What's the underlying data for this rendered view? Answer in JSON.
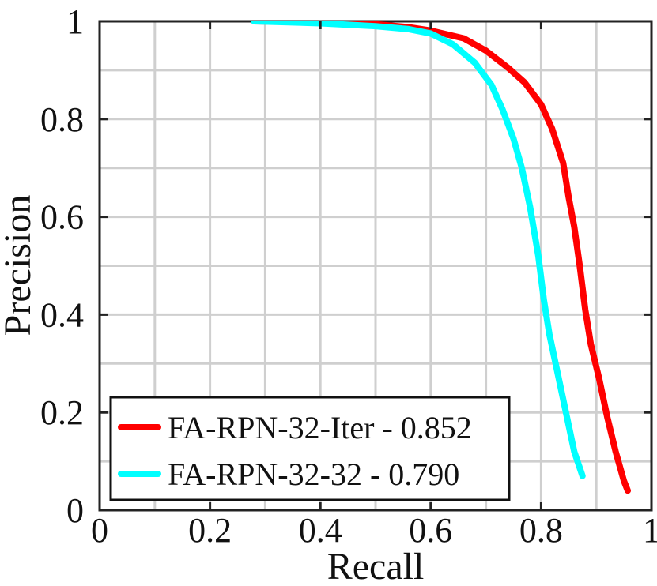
{
  "chart_data": {
    "type": "line",
    "title": "",
    "xlabel": "Recall",
    "ylabel": "Precision",
    "xlim": [
      0,
      1
    ],
    "ylim": [
      0,
      1
    ],
    "x_ticks": [
      0,
      0.2,
      0.4,
      0.6,
      0.8,
      1
    ],
    "y_ticks": [
      0,
      0.2,
      0.4,
      0.6,
      0.8,
      1
    ],
    "x_tick_labels": [
      "0",
      "0.2",
      "0.4",
      "0.6",
      "0.8",
      "1"
    ],
    "y_tick_labels": [
      "0",
      "0.2",
      "0.4",
      "0.6",
      "0.8",
      "1"
    ],
    "grid": true,
    "minor_grid": true,
    "legend_position": "bottom-left",
    "series": [
      {
        "name": "FA-RPN-32-Iter - 0.852",
        "color": "#ff0000",
        "points": [
          [
            0.28,
            1.0
          ],
          [
            0.4,
            0.998
          ],
          [
            0.5,
            0.994
          ],
          [
            0.56,
            0.988
          ],
          [
            0.6,
            0.981
          ],
          [
            0.66,
            0.965
          ],
          [
            0.7,
            0.94
          ],
          [
            0.74,
            0.905
          ],
          [
            0.77,
            0.875
          ],
          [
            0.8,
            0.83
          ],
          [
            0.82,
            0.78
          ],
          [
            0.84,
            0.71
          ],
          [
            0.85,
            0.64
          ],
          [
            0.86,
            0.58
          ],
          [
            0.87,
            0.5
          ],
          [
            0.88,
            0.41
          ],
          [
            0.89,
            0.34
          ],
          [
            0.905,
            0.27
          ],
          [
            0.92,
            0.19
          ],
          [
            0.935,
            0.12
          ],
          [
            0.95,
            0.06
          ],
          [
            0.957,
            0.04
          ]
        ]
      },
      {
        "name": "FA-RPN-32-32 - 0.790",
        "color": "#00ffff",
        "points": [
          [
            0.28,
            1.0
          ],
          [
            0.4,
            0.996
          ],
          [
            0.5,
            0.99
          ],
          [
            0.56,
            0.984
          ],
          [
            0.6,
            0.975
          ],
          [
            0.64,
            0.953
          ],
          [
            0.68,
            0.915
          ],
          [
            0.71,
            0.87
          ],
          [
            0.73,
            0.82
          ],
          [
            0.75,
            0.76
          ],
          [
            0.765,
            0.7
          ],
          [
            0.78,
            0.62
          ],
          [
            0.795,
            0.52
          ],
          [
            0.805,
            0.43
          ],
          [
            0.815,
            0.36
          ],
          [
            0.83,
            0.28
          ],
          [
            0.845,
            0.2
          ],
          [
            0.86,
            0.12
          ],
          [
            0.875,
            0.07
          ]
        ]
      }
    ]
  }
}
